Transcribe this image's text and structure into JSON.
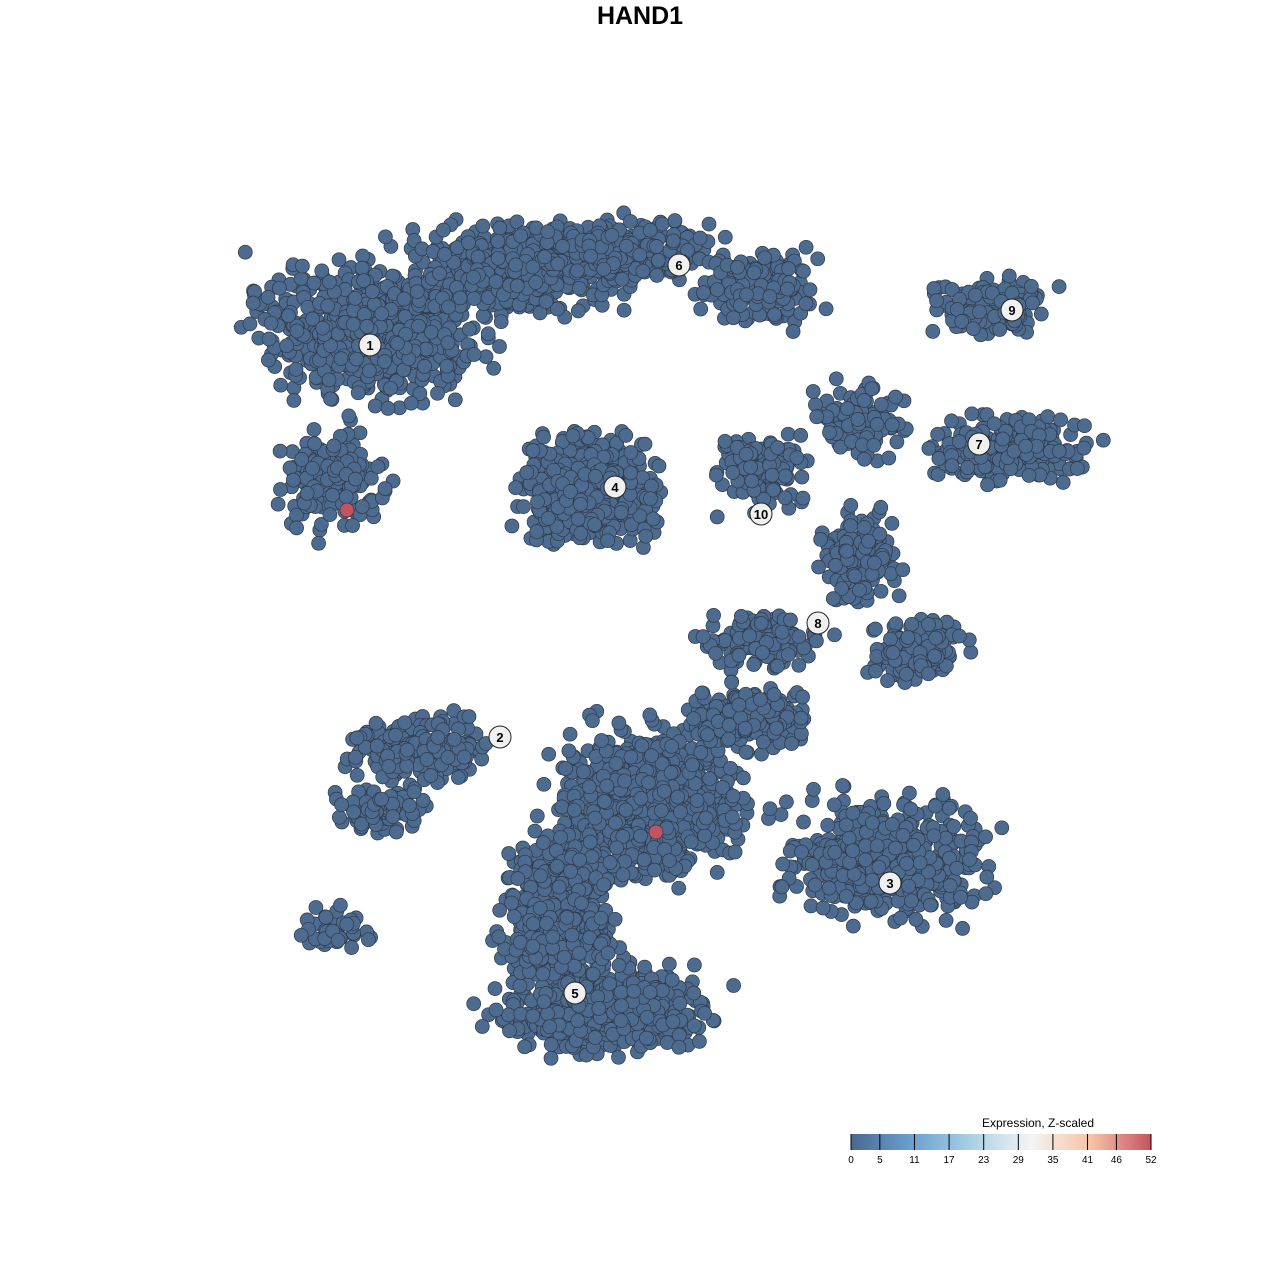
{
  "chart_data": {
    "type": "scatter",
    "title": "HAND1",
    "xlabel": "",
    "ylabel": "",
    "grid": false,
    "point_color_default": "#4d6a8f",
    "point_color_high": "#c4535f",
    "cluster_labels": [
      "1",
      "2",
      "3",
      "4",
      "5",
      "6",
      "7",
      "8",
      "9",
      "10"
    ],
    "high_expression_points": [
      {
        "cluster": "1",
        "value": 52
      },
      {
        "cluster": "2",
        "value": 52
      }
    ],
    "legend": {
      "title": "Expression, Z-scaled",
      "placement": "bottom-right",
      "ticks": [
        "0",
        "5",
        "11",
        "17",
        "23",
        "29",
        "35",
        "41",
        "46",
        "52"
      ],
      "range": [
        0,
        52
      ],
      "colors": [
        "#4a6890",
        "#6a9fcf",
        "#a8d0e3",
        "#f4f4f4",
        "#f7c3a6",
        "#c4535f"
      ]
    }
  }
}
